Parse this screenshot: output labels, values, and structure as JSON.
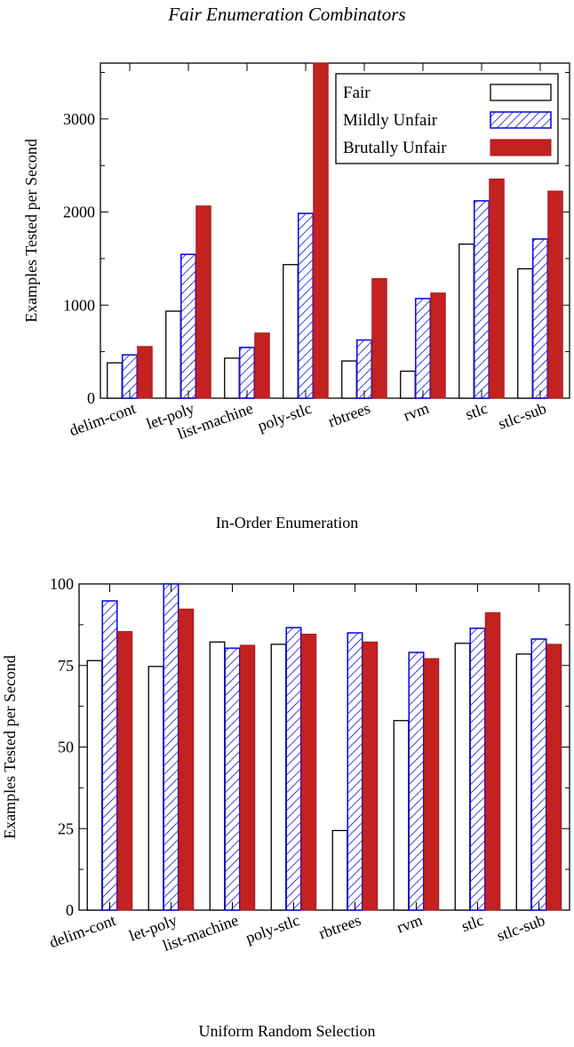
{
  "figure": {
    "title": "Fair Enumeration Combinators"
  },
  "colors": {
    "fair_fill": "#ffffff",
    "fair_stroke": "#000000",
    "mildly_stroke": "#1010dd",
    "brutal_fill": "#c42121",
    "brutal_stroke": "#a81818"
  },
  "chart_data": [
    {
      "type": "bar",
      "title": "",
      "caption": "In-Order Enumeration",
      "xlabel": "",
      "ylabel": "Examples Tested per Second",
      "categories": [
        "delim-cont",
        "let-poly",
        "list-machine",
        "poly-stlc",
        "rbtrees",
        "rvm",
        "stlc",
        "stlc-sub"
      ],
      "ylim": [
        0,
        3600
      ],
      "yticks": [
        0,
        1000,
        2000,
        3000
      ],
      "legend": "top-right",
      "grid": false,
      "series": [
        {
          "name": "Fair",
          "values": [
            380,
            935,
            430,
            1435,
            400,
            290,
            1655,
            1390
          ]
        },
        {
          "name": "Mildly Unfair",
          "values": [
            465,
            1545,
            545,
            1985,
            625,
            1070,
            2120,
            1710
          ]
        },
        {
          "name": "Brutally Unfair",
          "values": [
            555,
            2065,
            700,
            3600,
            1285,
            1130,
            2355,
            2225
          ]
        }
      ]
    },
    {
      "type": "bar",
      "title": "",
      "caption": "Uniform Random Selection",
      "xlabel": "",
      "ylabel": "Examples Tested per Second",
      "categories": [
        "delim-cont",
        "let-poly",
        "list-machine",
        "poly-stlc",
        "rbtrees",
        "rvm",
        "stlc",
        "stlc-sub"
      ],
      "ylim": [
        0,
        100
      ],
      "yticks": [
        0,
        25,
        50,
        75,
        100
      ],
      "legend": "none",
      "grid": false,
      "series": [
        {
          "name": "Fair",
          "values": [
            76.5,
            74.7,
            82.2,
            81.5,
            24.4,
            58.1,
            81.8,
            78.5
          ]
        },
        {
          "name": "Mildly Unfair",
          "values": [
            94.8,
            100.5,
            80.3,
            86.6,
            85,
            79,
            86.4,
            83.1
          ]
        },
        {
          "name": "Brutally Unfair",
          "values": [
            85.4,
            92.3,
            81.2,
            84.6,
            82.2,
            77.1,
            91.2,
            81.5
          ]
        }
      ]
    }
  ]
}
